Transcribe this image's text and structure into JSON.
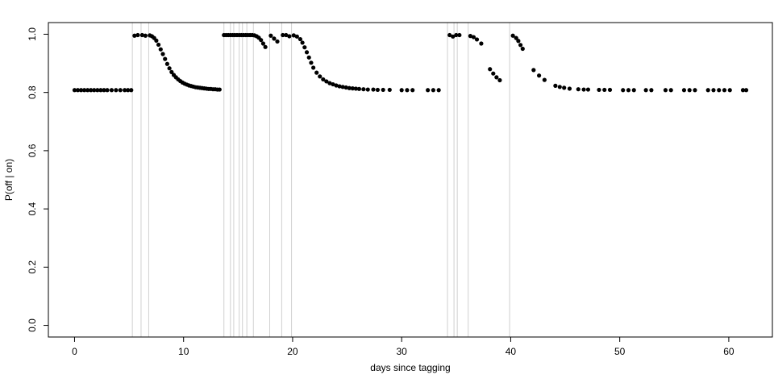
{
  "chart_data": {
    "type": "scatter",
    "title": "",
    "xlabel": "days since tagging",
    "ylabel": "P(off | on)",
    "xlim": [
      -2.4,
      64.0
    ],
    "ylim": [
      -0.04,
      1.04
    ],
    "x_ticks": [
      0,
      10,
      20,
      30,
      40,
      50,
      60
    ],
    "y_ticks": [
      0.0,
      0.2,
      0.4,
      0.6,
      0.8,
      1.0
    ],
    "y_tick_labels": [
      "0.0",
      "0.2",
      "0.4",
      "0.6",
      "0.8",
      "1.0"
    ],
    "grid": false,
    "legend": "none",
    "point_color": "#000000",
    "line_color": "#d0d0d0",
    "vertical_lines_x": [
      5.3,
      6.1,
      6.8,
      13.7,
      14.3,
      14.6,
      15.1,
      15.4,
      15.8,
      16.4,
      17.9,
      19.0,
      19.9,
      34.2,
      34.8,
      35.1,
      36.1,
      39.9
    ],
    "points": [
      [
        0.0,
        0.808
      ],
      [
        0.3,
        0.808
      ],
      [
        0.6,
        0.808
      ],
      [
        0.9,
        0.808
      ],
      [
        1.2,
        0.808
      ],
      [
        1.5,
        0.808
      ],
      [
        1.8,
        0.808
      ],
      [
        2.1,
        0.808
      ],
      [
        2.4,
        0.808
      ],
      [
        2.7,
        0.808
      ],
      [
        3.0,
        0.808
      ],
      [
        3.4,
        0.808
      ],
      [
        3.8,
        0.808
      ],
      [
        4.2,
        0.808
      ],
      [
        4.6,
        0.808
      ],
      [
        4.9,
        0.808
      ],
      [
        5.2,
        0.808
      ],
      [
        5.5,
        0.995
      ],
      [
        5.8,
        0.997
      ],
      [
        6.2,
        0.997
      ],
      [
        6.5,
        0.995
      ],
      [
        6.9,
        0.996
      ],
      [
        7.1,
        0.993
      ],
      [
        7.3,
        0.987
      ],
      [
        7.5,
        0.978
      ],
      [
        7.7,
        0.964
      ],
      [
        7.9,
        0.948
      ],
      [
        8.1,
        0.932
      ],
      [
        8.3,
        0.915
      ],
      [
        8.5,
        0.898
      ],
      [
        8.7,
        0.883
      ],
      [
        8.9,
        0.87
      ],
      [
        9.1,
        0.86
      ],
      [
        9.3,
        0.852
      ],
      [
        9.5,
        0.845
      ],
      [
        9.7,
        0.839
      ],
      [
        9.9,
        0.834
      ],
      [
        10.1,
        0.83
      ],
      [
        10.3,
        0.827
      ],
      [
        10.5,
        0.824
      ],
      [
        10.7,
        0.822
      ],
      [
        10.9,
        0.82
      ],
      [
        11.1,
        0.818
      ],
      [
        11.3,
        0.817
      ],
      [
        11.5,
        0.816
      ],
      [
        11.7,
        0.815
      ],
      [
        11.9,
        0.814
      ],
      [
        12.1,
        0.813
      ],
      [
        12.3,
        0.812
      ],
      [
        12.5,
        0.812
      ],
      [
        12.7,
        0.811
      ],
      [
        12.9,
        0.811
      ],
      [
        13.1,
        0.81
      ],
      [
        13.3,
        0.81
      ],
      [
        13.7,
        0.997
      ],
      [
        13.9,
        0.997
      ],
      [
        14.1,
        0.997
      ],
      [
        14.3,
        0.997
      ],
      [
        14.5,
        0.997
      ],
      [
        14.7,
        0.997
      ],
      [
        14.9,
        0.997
      ],
      [
        15.1,
        0.997
      ],
      [
        15.3,
        0.997
      ],
      [
        15.5,
        0.997
      ],
      [
        15.7,
        0.997
      ],
      [
        15.9,
        0.997
      ],
      [
        16.1,
        0.997
      ],
      [
        16.3,
        0.997
      ],
      [
        16.5,
        0.996
      ],
      [
        16.7,
        0.993
      ],
      [
        16.9,
        0.988
      ],
      [
        17.1,
        0.98
      ],
      [
        17.3,
        0.968
      ],
      [
        17.5,
        0.956
      ],
      [
        18.0,
        0.995
      ],
      [
        18.3,
        0.985
      ],
      [
        18.6,
        0.975
      ],
      [
        19.1,
        0.997
      ],
      [
        19.4,
        0.997
      ],
      [
        19.7,
        0.993
      ],
      [
        20.1,
        0.996
      ],
      [
        20.4,
        0.992
      ],
      [
        20.7,
        0.983
      ],
      [
        20.9,
        0.971
      ],
      [
        21.1,
        0.955
      ],
      [
        21.3,
        0.938
      ],
      [
        21.5,
        0.92
      ],
      [
        21.7,
        0.902
      ],
      [
        21.9,
        0.885
      ],
      [
        22.2,
        0.868
      ],
      [
        22.5,
        0.855
      ],
      [
        22.8,
        0.845
      ],
      [
        23.1,
        0.838
      ],
      [
        23.4,
        0.832
      ],
      [
        23.7,
        0.828
      ],
      [
        24.0,
        0.824
      ],
      [
        24.3,
        0.821
      ],
      [
        24.6,
        0.819
      ],
      [
        24.9,
        0.817
      ],
      [
        25.2,
        0.815
      ],
      [
        25.5,
        0.814
      ],
      [
        25.8,
        0.813
      ],
      [
        26.1,
        0.812
      ],
      [
        26.5,
        0.811
      ],
      [
        26.9,
        0.81
      ],
      [
        27.4,
        0.81
      ],
      [
        27.8,
        0.809
      ],
      [
        28.3,
        0.809
      ],
      [
        28.9,
        0.809
      ],
      [
        30.0,
        0.808
      ],
      [
        30.5,
        0.808
      ],
      [
        31.0,
        0.808
      ],
      [
        32.4,
        0.808
      ],
      [
        32.9,
        0.808
      ],
      [
        33.4,
        0.808
      ],
      [
        34.4,
        0.997
      ],
      [
        34.7,
        0.992
      ],
      [
        35.0,
        0.997
      ],
      [
        35.3,
        0.997
      ],
      [
        36.3,
        0.994
      ],
      [
        36.6,
        0.99
      ],
      [
        36.9,
        0.982
      ],
      [
        37.3,
        0.968
      ],
      [
        38.1,
        0.88
      ],
      [
        38.4,
        0.865
      ],
      [
        38.7,
        0.852
      ],
      [
        39.0,
        0.842
      ],
      [
        40.2,
        0.995
      ],
      [
        40.5,
        0.987
      ],
      [
        40.7,
        0.977
      ],
      [
        40.9,
        0.963
      ],
      [
        41.1,
        0.95
      ],
      [
        42.1,
        0.877
      ],
      [
        42.6,
        0.858
      ],
      [
        43.1,
        0.843
      ],
      [
        44.1,
        0.823
      ],
      [
        44.5,
        0.819
      ],
      [
        44.9,
        0.816
      ],
      [
        45.4,
        0.813
      ],
      [
        46.2,
        0.811
      ],
      [
        46.7,
        0.81
      ],
      [
        47.1,
        0.81
      ],
      [
        48.1,
        0.809
      ],
      [
        48.6,
        0.809
      ],
      [
        49.1,
        0.809
      ],
      [
        50.3,
        0.808
      ],
      [
        50.8,
        0.808
      ],
      [
        51.3,
        0.808
      ],
      [
        52.4,
        0.808
      ],
      [
        52.9,
        0.808
      ],
      [
        54.2,
        0.808
      ],
      [
        54.7,
        0.808
      ],
      [
        55.9,
        0.808
      ],
      [
        56.4,
        0.808
      ],
      [
        56.9,
        0.808
      ],
      [
        58.1,
        0.808
      ],
      [
        58.6,
        0.808
      ],
      [
        59.1,
        0.808
      ],
      [
        59.6,
        0.808
      ],
      [
        60.1,
        0.808
      ],
      [
        61.3,
        0.808
      ],
      [
        61.6,
        0.808
      ]
    ]
  }
}
